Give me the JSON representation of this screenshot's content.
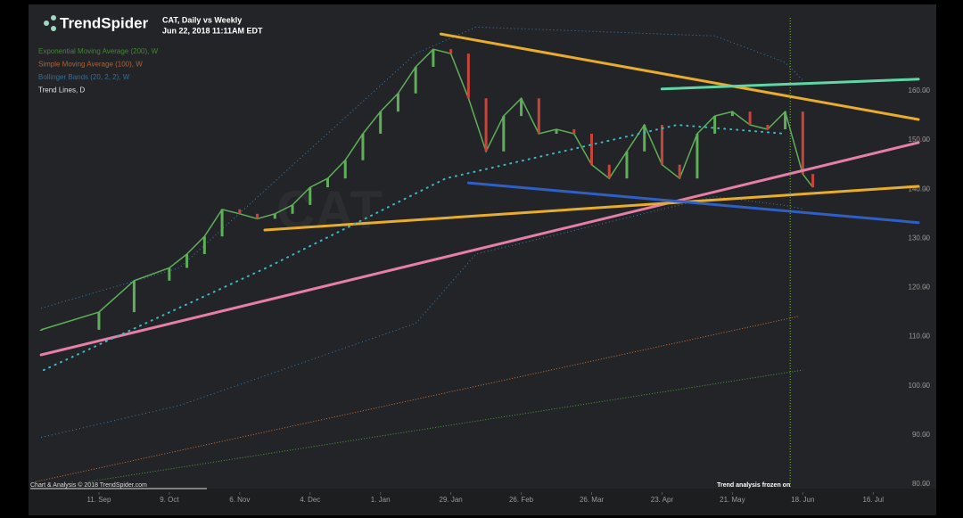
{
  "chart_data": {
    "type": "line",
    "brand": "TrendSpider",
    "title": "CAT, Daily vs Weekly",
    "subtitle": "Jun 22, 2018 11:11AM EDT",
    "watermark": "CAT",
    "footer": "Chart & Analysis © 2018 TrendSpider.com",
    "annotation": {
      "text": "Trend analysis frozen on",
      "x": 303
    },
    "xlim": [
      0,
      354
    ],
    "xticks": [
      {
        "value": 28,
        "label": "11. Sep"
      },
      {
        "value": 56,
        "label": "9. Oct"
      },
      {
        "value": 84,
        "label": "6. Nov"
      },
      {
        "value": 112,
        "label": "4. Dec"
      },
      {
        "value": 140,
        "label": "1. Jan"
      },
      {
        "value": 168,
        "label": "29. Jan"
      },
      {
        "value": 196,
        "label": "26. Feb"
      },
      {
        "value": 224,
        "label": "26. Mar"
      },
      {
        "value": 252,
        "label": "23. Apr"
      },
      {
        "value": 280,
        "label": "21. May"
      },
      {
        "value": 308,
        "label": "18. Jun"
      },
      {
        "value": 336,
        "label": "16. Jul"
      }
    ],
    "ylim": [
      80,
      177.6
    ],
    "yticks": [
      {
        "value": 80,
        "label": "80.00"
      },
      {
        "value": 90,
        "label": "90.00"
      },
      {
        "value": 100,
        "label": "100.00"
      },
      {
        "value": 110,
        "label": "110.00"
      },
      {
        "value": 120,
        "label": "120.00"
      },
      {
        "value": 130,
        "label": "130.00"
      },
      {
        "value": 140,
        "label": "140.00"
      },
      {
        "value": 150,
        "label": "150.00"
      },
      {
        "value": 160,
        "label": "160.00"
      }
    ],
    "price": {
      "color": "#5fae5a",
      "x": [
        5,
        28,
        42,
        56,
        63,
        70,
        77,
        84,
        91,
        98,
        105,
        112,
        119,
        126,
        133,
        140,
        147,
        154,
        161,
        168,
        175,
        182,
        189,
        196,
        203,
        210,
        217,
        224,
        231,
        238,
        245,
        252,
        259,
        266,
        273,
        280,
        287,
        294,
        301,
        308,
        312
      ],
      "values": [
        111.4,
        115,
        121.4,
        124,
        126.8,
        130.4,
        135.9,
        135,
        134,
        135,
        136.8,
        140.4,
        142.2,
        145.9,
        151.3,
        155.8,
        159.5,
        164.9,
        168.5,
        167.6,
        158.5,
        147.7,
        154.9,
        158.5,
        151.3,
        152.2,
        151.3,
        145,
        142.2,
        147.7,
        153.1,
        145,
        142.2,
        151.3,
        154.9,
        155.8,
        153.1,
        152.2,
        155.8,
        143.1,
        140.4
      ]
    },
    "series": [
      {
        "name": "Exponential Moving Average (200), W",
        "color": "#4f9a3c",
        "x": [
          24,
          308
        ],
        "values": [
          80.5,
          103.2
        ]
      },
      {
        "name": "Simple Moving Average (100), W",
        "color": "#d0703a",
        "x": [
          3,
          306
        ],
        "values": [
          80.5,
          114.1
        ]
      },
      {
        "name": "Bollinger Bands (20, 2, 2), W",
        "color": "#3a7fb0",
        "x": [
          5,
          60,
          154,
          178,
          273,
          301,
          308
        ],
        "upper": [
          115.8,
          124,
          167.6,
          173,
          171.2,
          165.8,
          162.2
        ],
        "lower": [
          89.5,
          96,
          112.7,
          126.8,
          138.5,
          136.7,
          136
        ]
      },
      {
        "name": "Trend Lines, D",
        "color": "#e0e0e0",
        "lines": [
          {
            "color": "#e8ac2e",
            "x": [
              164,
              354
            ],
            "values": [
              171.6,
              154.2
            ]
          },
          {
            "color": "#5fd6a6",
            "x": [
              252,
              354
            ],
            "values": [
              160.4,
              162.4
            ]
          },
          {
            "color": "#e57fa8",
            "x": [
              5,
              354
            ],
            "values": [
              106.3,
              149.5
            ]
          },
          {
            "color": "#e8ac2e",
            "x": [
              94,
              354
            ],
            "values": [
              131.7,
              140.6
            ]
          },
          {
            "color": "#2f5fc4",
            "x": [
              175,
              354
            ],
            "values": [
              141.3,
              133.2
            ]
          },
          {
            "color": "#3fb8c8",
            "x": [
              6,
              95,
              166,
              258,
              301
            ],
            "values": [
              103.2,
              124.1,
              142.2,
              153.1,
              151.3
            ]
          }
        ]
      }
    ]
  }
}
